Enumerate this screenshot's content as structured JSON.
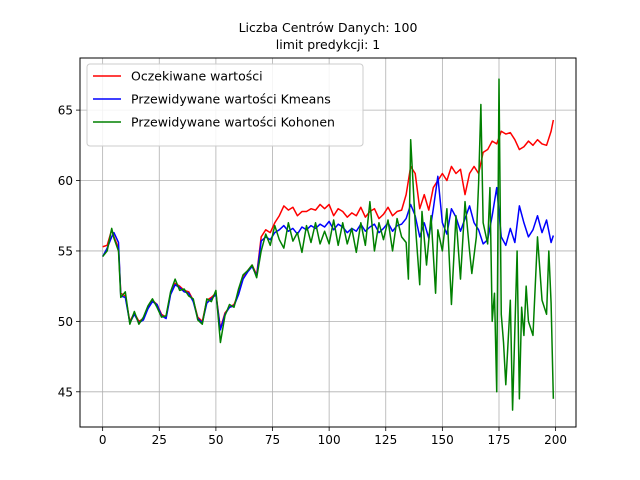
{
  "chart_data": {
    "type": "line",
    "title": "Liczba Centrów Danych: 100",
    "subtitle": "limit predykcji: 1",
    "xlabel": "",
    "ylabel": "",
    "xlim": [
      -10,
      209
    ],
    "ylim": [
      42.5,
      68.7
    ],
    "x_ticks": [
      0,
      25,
      50,
      75,
      100,
      125,
      150,
      175,
      200
    ],
    "y_ticks": [
      45,
      50,
      55,
      60,
      65
    ],
    "grid": true,
    "legend_position": "top-left",
    "series": [
      {
        "name": "Oczekiwane wartości",
        "color": "#ff0000",
        "points": [
          [
            0,
            55.3
          ],
          [
            2,
            55.4
          ],
          [
            4,
            56.5
          ],
          [
            5,
            56.0
          ],
          [
            7,
            55.2
          ],
          [
            8,
            52.0
          ],
          [
            10,
            51.8
          ],
          [
            12,
            50.0
          ],
          [
            14,
            50.6
          ],
          [
            16,
            50.0
          ],
          [
            18,
            50.2
          ],
          [
            20,
            51.0
          ],
          [
            22,
            51.5
          ],
          [
            24,
            51.2
          ],
          [
            26,
            50.5
          ],
          [
            28,
            50.3
          ],
          [
            30,
            52.0
          ],
          [
            32,
            52.7
          ],
          [
            34,
            52.5
          ],
          [
            36,
            52.2
          ],
          [
            38,
            52.1
          ],
          [
            40,
            51.5
          ],
          [
            42,
            50.3
          ],
          [
            44,
            50.0
          ],
          [
            46,
            51.5
          ],
          [
            48,
            51.7
          ],
          [
            50,
            52.0
          ],
          [
            52,
            49.5
          ],
          [
            54,
            50.6
          ],
          [
            56,
            51.0
          ],
          [
            58,
            51.2
          ],
          [
            60,
            52.0
          ],
          [
            62,
            53.2
          ],
          [
            64,
            53.6
          ],
          [
            66,
            54.0
          ],
          [
            68,
            53.3
          ],
          [
            70,
            56.0
          ],
          [
            72,
            56.5
          ],
          [
            74,
            56.3
          ],
          [
            76,
            57.0
          ],
          [
            78,
            57.5
          ],
          [
            80,
            58.2
          ],
          [
            82,
            57.9
          ],
          [
            84,
            58.1
          ],
          [
            86,
            57.5
          ],
          [
            88,
            57.8
          ],
          [
            90,
            57.8
          ],
          [
            92,
            58.0
          ],
          [
            94,
            57.9
          ],
          [
            96,
            58.3
          ],
          [
            98,
            58.0
          ],
          [
            100,
            58.3
          ],
          [
            102,
            57.5
          ],
          [
            104,
            58.0
          ],
          [
            106,
            57.8
          ],
          [
            108,
            57.4
          ],
          [
            110,
            57.7
          ],
          [
            112,
            57.5
          ],
          [
            114,
            58.1
          ],
          [
            116,
            57.4
          ],
          [
            118,
            57.8
          ],
          [
            120,
            58.0
          ],
          [
            122,
            57.3
          ],
          [
            124,
            57.6
          ],
          [
            126,
            58.1
          ],
          [
            128,
            57.5
          ],
          [
            130,
            57.8
          ],
          [
            132,
            57.9
          ],
          [
            134,
            59.0
          ],
          [
            136,
            61.0
          ],
          [
            138,
            60.5
          ],
          [
            140,
            58.0
          ],
          [
            142,
            59.0
          ],
          [
            144,
            57.9
          ],
          [
            146,
            59.5
          ],
          [
            148,
            60.0
          ],
          [
            150,
            60.5
          ],
          [
            152,
            60.0
          ],
          [
            154,
            61.0
          ],
          [
            156,
            60.5
          ],
          [
            158,
            60.8
          ],
          [
            160,
            59.0
          ],
          [
            162,
            60.5
          ],
          [
            164,
            61.0
          ],
          [
            166,
            60.5
          ],
          [
            168,
            62.0
          ],
          [
            170,
            62.2
          ],
          [
            172,
            62.8
          ],
          [
            174,
            62.6
          ],
          [
            176,
            63.5
          ],
          [
            178,
            63.3
          ],
          [
            180,
            63.4
          ],
          [
            182,
            62.9
          ],
          [
            184,
            62.2
          ],
          [
            186,
            62.4
          ],
          [
            188,
            62.8
          ],
          [
            190,
            62.5
          ],
          [
            192,
            62.9
          ],
          [
            194,
            62.6
          ],
          [
            196,
            62.5
          ],
          [
            198,
            63.5
          ],
          [
            199,
            64.3
          ]
        ]
      },
      {
        "name": "Przewidywane wartości Kmeans",
        "color": "#0000ff",
        "points": [
          [
            0,
            54.6
          ],
          [
            2,
            55.2
          ],
          [
            4,
            56.0
          ],
          [
            5,
            56.3
          ],
          [
            7,
            55.6
          ],
          [
            8,
            51.8
          ],
          [
            10,
            51.7
          ],
          [
            12,
            49.9
          ],
          [
            14,
            50.5
          ],
          [
            16,
            49.9
          ],
          [
            18,
            50.1
          ],
          [
            20,
            50.9
          ],
          [
            22,
            51.4
          ],
          [
            24,
            51.2
          ],
          [
            26,
            50.4
          ],
          [
            28,
            50.2
          ],
          [
            30,
            51.9
          ],
          [
            32,
            52.6
          ],
          [
            34,
            52.4
          ],
          [
            36,
            52.1
          ],
          [
            38,
            52.0
          ],
          [
            40,
            51.4
          ],
          [
            42,
            50.2
          ],
          [
            44,
            49.9
          ],
          [
            46,
            51.3
          ],
          [
            48,
            51.6
          ],
          [
            50,
            51.9
          ],
          [
            52,
            49.4
          ],
          [
            54,
            50.5
          ],
          [
            56,
            51.0
          ],
          [
            58,
            51.1
          ],
          [
            60,
            51.9
          ],
          [
            62,
            53.0
          ],
          [
            64,
            53.5
          ],
          [
            66,
            53.9
          ],
          [
            68,
            53.2
          ],
          [
            70,
            55.7
          ],
          [
            72,
            56.0
          ],
          [
            74,
            55.8
          ],
          [
            76,
            56.3
          ],
          [
            78,
            56.5
          ],
          [
            80,
            56.8
          ],
          [
            82,
            56.4
          ],
          [
            84,
            56.6
          ],
          [
            86,
            56.2
          ],
          [
            88,
            56.7
          ],
          [
            90,
            56.5
          ],
          [
            92,
            56.8
          ],
          [
            94,
            56.6
          ],
          [
            96,
            56.9
          ],
          [
            98,
            56.7
          ],
          [
            100,
            57.1
          ],
          [
            102,
            56.5
          ],
          [
            104,
            56.9
          ],
          [
            106,
            56.7
          ],
          [
            108,
            56.3
          ],
          [
            110,
            56.6
          ],
          [
            112,
            56.4
          ],
          [
            114,
            56.9
          ],
          [
            116,
            56.4
          ],
          [
            118,
            56.7
          ],
          [
            120,
            56.9
          ],
          [
            122,
            56.3
          ],
          [
            124,
            56.6
          ],
          [
            126,
            57.0
          ],
          [
            128,
            56.4
          ],
          [
            130,
            56.8
          ],
          [
            132,
            56.9
          ],
          [
            134,
            57.3
          ],
          [
            136,
            58.3
          ],
          [
            138,
            57.5
          ],
          [
            140,
            56.0
          ],
          [
            142,
            57.0
          ],
          [
            144,
            55.9
          ],
          [
            146,
            58.0
          ],
          [
            148,
            60.3
          ],
          [
            150,
            57.0
          ],
          [
            152,
            56.2
          ],
          [
            154,
            58.0
          ],
          [
            156,
            57.4
          ],
          [
            158,
            56.4
          ],
          [
            160,
            57.3
          ],
          [
            162,
            58.2
          ],
          [
            164,
            57.0
          ],
          [
            166,
            56.5
          ],
          [
            168,
            55.5
          ],
          [
            170,
            55.8
          ],
          [
            172,
            57.5
          ],
          [
            174,
            59.5
          ],
          [
            176,
            56.0
          ],
          [
            178,
            55.4
          ],
          [
            180,
            56.6
          ],
          [
            182,
            55.6
          ],
          [
            184,
            58.2
          ],
          [
            186,
            57.0
          ],
          [
            188,
            56.0
          ],
          [
            190,
            56.5
          ],
          [
            192,
            57.5
          ],
          [
            194,
            56.3
          ],
          [
            196,
            57.2
          ],
          [
            198,
            55.6
          ],
          [
            199,
            56.1
          ]
        ]
      },
      {
        "name": "Przewidywane wartości Kohonen",
        "color": "#008000",
        "points": [
          [
            0,
            54.6
          ],
          [
            2,
            55.0
          ],
          [
            4,
            56.6
          ],
          [
            5,
            55.9
          ],
          [
            7,
            55.0
          ],
          [
            8,
            51.7
          ],
          [
            10,
            52.1
          ],
          [
            12,
            49.8
          ],
          [
            14,
            50.7
          ],
          [
            16,
            49.8
          ],
          [
            18,
            50.3
          ],
          [
            20,
            51.1
          ],
          [
            22,
            51.6
          ],
          [
            24,
            51.0
          ],
          [
            26,
            50.3
          ],
          [
            28,
            50.4
          ],
          [
            30,
            52.1
          ],
          [
            32,
            53.0
          ],
          [
            34,
            52.2
          ],
          [
            36,
            52.3
          ],
          [
            38,
            51.8
          ],
          [
            40,
            51.6
          ],
          [
            42,
            50.1
          ],
          [
            44,
            49.8
          ],
          [
            46,
            51.6
          ],
          [
            48,
            51.4
          ],
          [
            50,
            52.2
          ],
          [
            52,
            48.5
          ],
          [
            54,
            50.4
          ],
          [
            56,
            51.2
          ],
          [
            58,
            51.0
          ],
          [
            60,
            52.3
          ],
          [
            62,
            53.3
          ],
          [
            64,
            53.6
          ],
          [
            66,
            54.0
          ],
          [
            68,
            53.1
          ],
          [
            70,
            55.0
          ],
          [
            72,
            56.2
          ],
          [
            74,
            55.4
          ],
          [
            76,
            56.8
          ],
          [
            78,
            55.8
          ],
          [
            80,
            55.2
          ],
          [
            82,
            57.0
          ],
          [
            84,
            55.7
          ],
          [
            86,
            56.3
          ],
          [
            88,
            54.9
          ],
          [
            90,
            56.8
          ],
          [
            92,
            55.6
          ],
          [
            94,
            57.0
          ],
          [
            96,
            55.5
          ],
          [
            98,
            56.4
          ],
          [
            100,
            55.5
          ],
          [
            102,
            57.2
          ],
          [
            104,
            55.4
          ],
          [
            106,
            57.0
          ],
          [
            108,
            55.5
          ],
          [
            110,
            56.6
          ],
          [
            112,
            54.9
          ],
          [
            114,
            57.0
          ],
          [
            116,
            55.4
          ],
          [
            118,
            58.5
          ],
          [
            120,
            55.0
          ],
          [
            122,
            57.0
          ],
          [
            124,
            55.8
          ],
          [
            126,
            57.2
          ],
          [
            128,
            55.0
          ],
          [
            130,
            57.3
          ],
          [
            132,
            56.0
          ],
          [
            134,
            55.6
          ],
          [
            135,
            53.0
          ],
          [
            136,
            62.9
          ],
          [
            138,
            57.0
          ],
          [
            140,
            52.6
          ],
          [
            141,
            57.8
          ],
          [
            143,
            54.0
          ],
          [
            145,
            57.5
          ],
          [
            147,
            52.0
          ],
          [
            148,
            56.5
          ],
          [
            150,
            55.0
          ],
          [
            152,
            58.0
          ],
          [
            154,
            51.2
          ],
          [
            156,
            57.5
          ],
          [
            158,
            53.0
          ],
          [
            160,
            58.5
          ],
          [
            162,
            55.0
          ],
          [
            163,
            53.4
          ],
          [
            165,
            56.0
          ],
          [
            166,
            59.8
          ],
          [
            167,
            65.4
          ],
          [
            168,
            57.0
          ],
          [
            170,
            55.5
          ],
          [
            171,
            59.5
          ],
          [
            172,
            50.0
          ],
          [
            173,
            52.0
          ],
          [
            174,
            45.0
          ],
          [
            175,
            67.2
          ],
          [
            176,
            50.5
          ],
          [
            177,
            48.5
          ],
          [
            178,
            45.5
          ],
          [
            180,
            51.5
          ],
          [
            181,
            43.7
          ],
          [
            183,
            55.0
          ],
          [
            184,
            44.5
          ],
          [
            185,
            51.0
          ],
          [
            186,
            49.0
          ],
          [
            187,
            52.5
          ],
          [
            188,
            50.0
          ],
          [
            190,
            49.0
          ],
          [
            192,
            56.0
          ],
          [
            194,
            51.5
          ],
          [
            196,
            50.5
          ],
          [
            197,
            55.0
          ],
          [
            198,
            51.3
          ],
          [
            199,
            44.5
          ]
        ]
      }
    ]
  }
}
